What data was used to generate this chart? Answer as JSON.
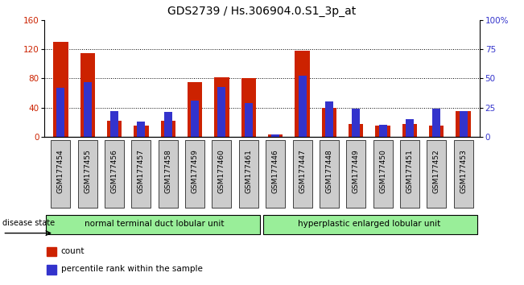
{
  "title": "GDS2739 / Hs.306904.0.S1_3p_at",
  "samples": [
    "GSM177454",
    "GSM177455",
    "GSM177456",
    "GSM177457",
    "GSM177458",
    "GSM177459",
    "GSM177460",
    "GSM177461",
    "GSM177446",
    "GSM177447",
    "GSM177448",
    "GSM177449",
    "GSM177450",
    "GSM177451",
    "GSM177452",
    "GSM177453"
  ],
  "counts": [
    130,
    115,
    22,
    15,
    22,
    75,
    82,
    80,
    3,
    118,
    40,
    18,
    15,
    18,
    15,
    35
  ],
  "percentiles": [
    42,
    47,
    22,
    13,
    21,
    31,
    43,
    29,
    2,
    52,
    30,
    24,
    10,
    15,
    24,
    22
  ],
  "group1_label": "normal terminal duct lobular unit",
  "group2_label": "hyperplastic enlarged lobular unit",
  "group1_indices": [
    0,
    1,
    2,
    3,
    4,
    5,
    6,
    7
  ],
  "group2_indices": [
    8,
    9,
    10,
    11,
    12,
    13,
    14,
    15
  ],
  "disease_state_label": "disease state",
  "legend_count_label": "count",
  "legend_pct_label": "percentile rank within the sample",
  "ylim_left": [
    0,
    160
  ],
  "ylim_right": [
    0,
    100
  ],
  "yticks_left": [
    0,
    40,
    80,
    120,
    160
  ],
  "yticks_right": [
    0,
    25,
    50,
    75,
    100
  ],
  "bar_color_red": "#CC2200",
  "bar_color_blue": "#3333CC",
  "grid_color": "#000000",
  "bg_color": "#FFFFFF",
  "group_bg_color": "#99EE99",
  "tick_bg_color": "#CCCCCC",
  "red_bar_width": 0.55,
  "blue_bar_width": 0.3,
  "title_fontsize": 10,
  "tick_fontsize": 6.5,
  "label_fontsize": 7.5
}
